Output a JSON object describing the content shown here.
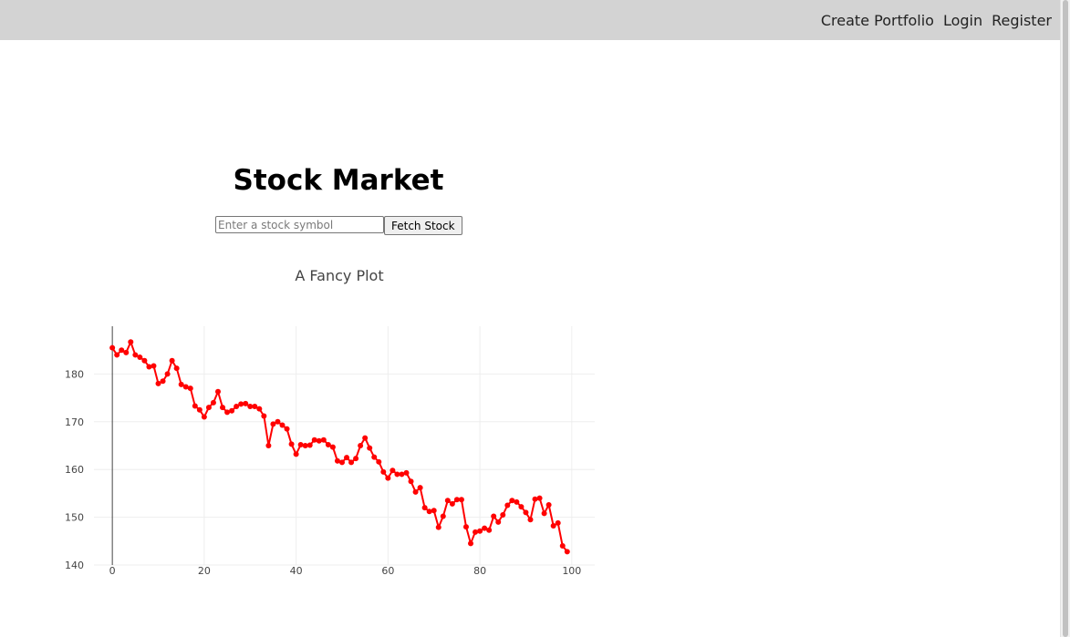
{
  "nav": {
    "create_portfolio": "Create Portfolio",
    "login": "Login",
    "register": "Register"
  },
  "page": {
    "title": "Stock Market"
  },
  "search": {
    "placeholder": "Enter a stock symbol",
    "value": "",
    "button_label": "Fetch Stock"
  },
  "colors": {
    "topbar": "#d3d3d3",
    "series": "#ff0000",
    "grid": "#eeeeee"
  },
  "chart_data": {
    "type": "line",
    "title": "A Fancy Plot",
    "xlabel": "",
    "ylabel": "",
    "xlim": [
      -4,
      105
    ],
    "ylim": [
      140,
      190
    ],
    "x_ticks": [
      0,
      20,
      40,
      60,
      80,
      100
    ],
    "y_ticks": [
      140,
      150,
      160,
      170,
      180
    ],
    "grid": true,
    "markers": true,
    "series": [
      {
        "x": [
          0,
          1,
          2,
          3,
          4,
          5,
          6,
          7,
          8,
          9,
          10,
          11,
          12,
          13,
          14,
          15,
          16,
          17,
          18,
          19,
          20,
          21,
          22,
          23,
          24,
          25,
          26,
          27,
          28,
          29,
          30,
          31,
          32,
          33,
          34,
          35,
          36,
          37,
          38,
          39,
          40,
          41,
          42,
          43,
          44,
          45,
          46,
          47,
          48,
          49,
          50,
          51,
          52,
          53,
          54,
          55,
          56,
          57,
          58,
          59,
          60,
          61,
          62,
          63,
          64,
          65,
          66,
          67,
          68,
          69,
          70,
          71,
          72,
          73,
          74,
          75,
          76,
          77,
          78,
          79,
          80,
          81,
          82,
          83,
          84,
          85,
          86,
          87,
          88,
          89,
          90,
          91,
          92,
          93,
          94,
          95,
          96,
          97,
          98,
          99
        ],
        "values": [
          185.5,
          184.0,
          185.0,
          184.5,
          186.7,
          184.0,
          183.5,
          182.8,
          181.5,
          181.7,
          178.0,
          178.5,
          180.0,
          182.8,
          181.2,
          177.8,
          177.3,
          177.0,
          173.3,
          172.5,
          171.0,
          173.0,
          174.0,
          176.3,
          173.0,
          172.0,
          172.3,
          173.2,
          173.7,
          173.8,
          173.2,
          173.2,
          172.7,
          171.2,
          165.0,
          169.5,
          170.0,
          169.3,
          168.5,
          165.3,
          163.2,
          165.2,
          165.0,
          165.1,
          166.2,
          166.0,
          166.2,
          165.2,
          164.7,
          161.8,
          161.5,
          162.5,
          161.5,
          162.3,
          165.0,
          166.6,
          164.5,
          162.6,
          161.6,
          159.5,
          158.2,
          159.8,
          159.0,
          159.0,
          159.3,
          157.5,
          155.3,
          156.2,
          152.0,
          151.2,
          151.4,
          147.9,
          150.2,
          153.5,
          152.8,
          153.7,
          153.7,
          148.0,
          144.5,
          146.9,
          147.1,
          147.7,
          147.3,
          150.2,
          149.0,
          150.5,
          152.5,
          153.5,
          153.2,
          152.2,
          151.0,
          149.5,
          153.8,
          154.0,
          150.8,
          152.6,
          148.2,
          148.8,
          144.0,
          142.8
        ]
      }
    ]
  }
}
